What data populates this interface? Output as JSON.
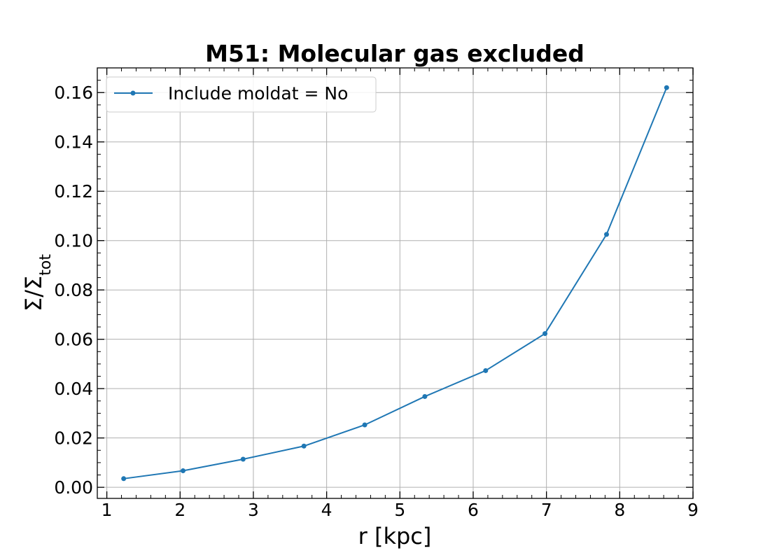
{
  "chart_data": {
    "type": "line",
    "title": "M51: Molecular gas excluded",
    "xlabel": "r [kpc]",
    "ylabel": {
      "main": "Σ/Σ",
      "subscript": "tot"
    },
    "xlim": [
      0.87,
      9.0
    ],
    "ylim": [
      -0.0045,
      0.17
    ],
    "xticks": [
      1,
      2,
      3,
      4,
      5,
      6,
      7,
      8,
      9
    ],
    "yticks": [
      0.0,
      0.02,
      0.04,
      0.06,
      0.08,
      0.1,
      0.12,
      0.14,
      0.16
    ],
    "ytick_labels": [
      "0.00",
      "0.02",
      "0.04",
      "0.06",
      "0.08",
      "0.10",
      "0.12",
      "0.14",
      "0.16"
    ],
    "grid": true,
    "legend_position": "upper-left",
    "series": [
      {
        "name": "Include moldat = No",
        "color": "#1f77b4",
        "marker": "dot",
        "x": [
          1.23,
          2.04,
          2.86,
          3.69,
          4.52,
          5.34,
          6.17,
          6.98,
          7.82,
          8.64
        ],
        "y": [
          0.0035,
          0.0067,
          0.0114,
          0.0167,
          0.0253,
          0.0368,
          0.0473,
          0.0623,
          0.1025,
          0.162
        ]
      }
    ]
  }
}
